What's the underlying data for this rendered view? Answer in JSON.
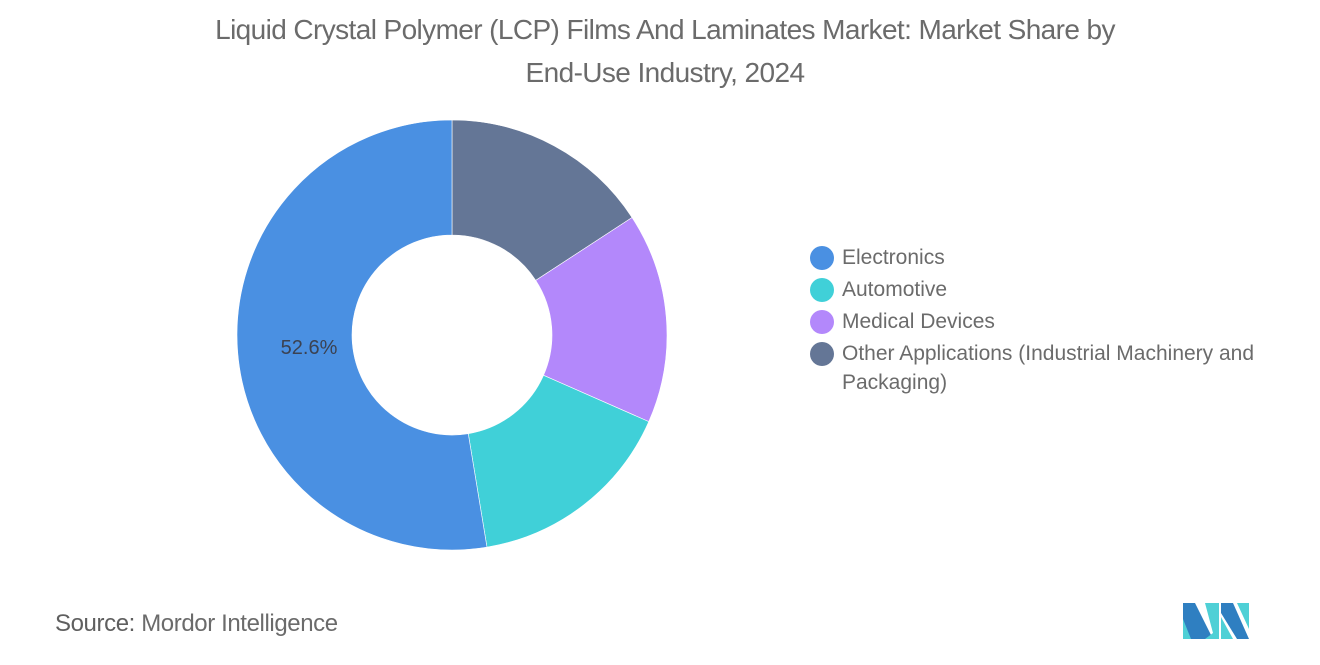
{
  "title": "Liquid Crystal Polymer (LCP) Films And Laminates Market: Market Share by End-Use Industry, 2024",
  "title_line1": "Liquid Crystal Polymer (LCP) Films And Laminates Market: Market Share by",
  "title_line2": "End-Use Industry, 2024",
  "legend": [
    {
      "label": "Electronics",
      "color": "#4a90e2"
    },
    {
      "label": "Automotive",
      "color": "#40d0d8"
    },
    {
      "label": "Medical Devices",
      "color": "#b388fb"
    },
    {
      "label": "Other Applications (Industrial Machinery and Packaging)",
      "color": "#647696"
    }
  ],
  "slice_label": "52.6%",
  "source_label": "Source:",
  "source_value": "Mordor Intelligence",
  "chart_data": {
    "type": "pie",
    "subtype": "donut",
    "title": "Liquid Crystal Polymer (LCP) Films And Laminates Market: Market Share by End-Use Industry, 2024",
    "categories": [
      "Electronics",
      "Automotive",
      "Medical Devices",
      "Other Applications (Industrial Machinery and Packaging)"
    ],
    "values": [
      52.6,
      15.8,
      15.8,
      15.8
    ],
    "colors": [
      "#4a90e2",
      "#40d0d8",
      "#b388fb",
      "#647696"
    ],
    "data_labels": {
      "Electronics": "52.6%"
    },
    "unit": "%",
    "legend_position": "right",
    "start_angle": "12 o'clock, clockwise order: Other Applications, Medical Devices, Automotive, Electronics"
  }
}
